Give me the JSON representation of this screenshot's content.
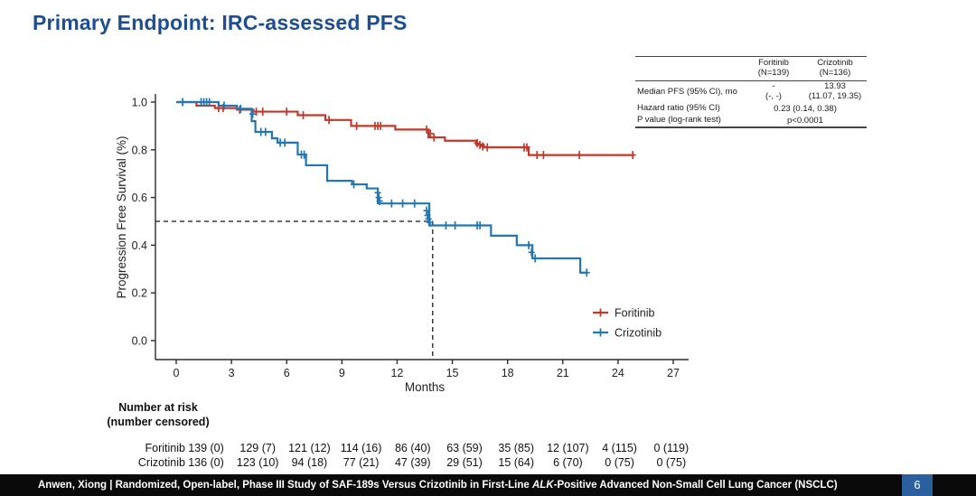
{
  "title": "Primary Endpoint: IRC-assessed PFS",
  "theme": {
    "title_color": "#1d4e93",
    "foritinib_color": "#c0392b",
    "crizotinib_color": "#2077b4",
    "dashed_line_color": "#3a3a3a",
    "axis_color": "#2b2b2b",
    "footer_bg": "#0a0a0a",
    "page_box_color": "#2c5f9e"
  },
  "stats_table": {
    "columns": [
      {
        "name": "Foritinib",
        "n": "(N=139)"
      },
      {
        "name": "Crizotinib",
        "n": "(N=136)"
      }
    ],
    "rows": {
      "median": {
        "label": "Median PFS (95% CI), mo",
        "foritinib_value": "-",
        "foritinib_ci": "(-, -)",
        "crizotinib_value": "13.93",
        "crizotinib_ci": "(11.07, 19.35)"
      },
      "hazard": {
        "label": "Hazard ratio (95% CI)",
        "value": "0.23 (0.14, 0.38)"
      },
      "pvalue": {
        "label": "P value (log-rank test)",
        "value": "p<0.0001"
      }
    }
  },
  "chart_data": {
    "type": "line",
    "subtype": "kaplan-meier-step",
    "title": "",
    "xlabel": "Months",
    "ylabel": "Progression Free Survival (%)",
    "x_ticks": [
      0,
      3,
      6,
      9,
      12,
      15,
      18,
      21,
      24,
      27
    ],
    "y_ticks": [
      0.0,
      0.2,
      0.4,
      0.6,
      0.8,
      1.0
    ],
    "y_tick_labels": [
      "0.0",
      "0.2",
      "0.4",
      "0.6",
      "0.8",
      "1.0"
    ],
    "xlim": [
      0,
      28
    ],
    "ylim": [
      0,
      1.02
    ],
    "grid": false,
    "legend_position": "inside-lower-right",
    "median_reference": {
      "x": 13.93,
      "y": 0.5
    },
    "series": [
      {
        "name": "Foritinib",
        "color": "#c0392b",
        "steps": [
          [
            0,
            1.0
          ],
          [
            1.1,
            0.985
          ],
          [
            2.1,
            0.975
          ],
          [
            3.3,
            0.968
          ],
          [
            4.2,
            0.96
          ],
          [
            6.6,
            0.945
          ],
          [
            8.1,
            0.925
          ],
          [
            9.5,
            0.9
          ],
          [
            11.9,
            0.885
          ],
          [
            13.7,
            0.852
          ],
          [
            14.6,
            0.838
          ],
          [
            16.3,
            0.822
          ],
          [
            16.7,
            0.81
          ],
          [
            19.15,
            0.778
          ],
          [
            24.8,
            0.778
          ]
        ],
        "censors": [
          [
            2.3,
            0.975
          ],
          [
            2.55,
            0.975
          ],
          [
            3.45,
            0.968
          ],
          [
            4.35,
            0.96
          ],
          [
            4.7,
            0.96
          ],
          [
            6.0,
            0.96
          ],
          [
            6.9,
            0.945
          ],
          [
            8.3,
            0.925
          ],
          [
            9.8,
            0.9
          ],
          [
            10.8,
            0.9
          ],
          [
            10.95,
            0.9
          ],
          [
            11.1,
            0.9
          ],
          [
            13.6,
            0.885
          ],
          [
            13.8,
            0.868
          ],
          [
            14.0,
            0.852
          ],
          [
            16.35,
            0.828
          ],
          [
            16.5,
            0.82
          ],
          [
            16.65,
            0.814
          ],
          [
            16.9,
            0.81
          ],
          [
            18.9,
            0.81
          ],
          [
            19.05,
            0.81
          ],
          [
            19.6,
            0.778
          ],
          [
            19.95,
            0.778
          ],
          [
            21.9,
            0.778
          ],
          [
            24.8,
            0.778
          ]
        ]
      },
      {
        "name": "Crizotinib",
        "color": "#2077b4",
        "steps": [
          [
            0,
            1.0
          ],
          [
            2.3,
            0.985
          ],
          [
            3.3,
            0.972
          ],
          [
            4.1,
            0.92
          ],
          [
            4.3,
            0.875
          ],
          [
            5.2,
            0.848
          ],
          [
            5.5,
            0.83
          ],
          [
            6.6,
            0.78
          ],
          [
            7.05,
            0.735
          ],
          [
            8.2,
            0.67
          ],
          [
            9.55,
            0.655
          ],
          [
            10.35,
            0.638
          ],
          [
            10.95,
            0.575
          ],
          [
            13.75,
            0.483
          ],
          [
            17.1,
            0.44
          ],
          [
            18.5,
            0.4
          ],
          [
            19.35,
            0.345
          ],
          [
            21.95,
            0.285
          ],
          [
            22.3,
            0.285
          ]
        ],
        "censors": [
          [
            0.35,
            1.0
          ],
          [
            1.35,
            1.0
          ],
          [
            1.5,
            1.0
          ],
          [
            1.65,
            1.0
          ],
          [
            1.8,
            1.0
          ],
          [
            2.6,
            0.985
          ],
          [
            3.5,
            0.972
          ],
          [
            4.15,
            0.95
          ],
          [
            4.6,
            0.875
          ],
          [
            4.85,
            0.875
          ],
          [
            5.65,
            0.83
          ],
          [
            5.9,
            0.83
          ],
          [
            6.8,
            0.78
          ],
          [
            6.95,
            0.78
          ],
          [
            9.65,
            0.655
          ],
          [
            10.95,
            0.62
          ],
          [
            11.0,
            0.6
          ],
          [
            11.05,
            0.585
          ],
          [
            11.7,
            0.575
          ],
          [
            12.3,
            0.575
          ],
          [
            12.95,
            0.575
          ],
          [
            13.6,
            0.545
          ],
          [
            13.65,
            0.525
          ],
          [
            13.7,
            0.51
          ],
          [
            13.78,
            0.495
          ],
          [
            14.65,
            0.483
          ],
          [
            15.15,
            0.483
          ],
          [
            16.35,
            0.483
          ],
          [
            16.5,
            0.483
          ],
          [
            19.15,
            0.4
          ],
          [
            19.3,
            0.37
          ],
          [
            19.5,
            0.345
          ],
          [
            22.3,
            0.285
          ]
        ]
      }
    ]
  },
  "risk_table": {
    "header_line1": "Number at risk",
    "header_line2": "(number censored)",
    "rows": [
      {
        "label": "Foritinib",
        "values": [
          "139 (0)",
          "129 (7)",
          "121 (12)",
          "114 (16)",
          "86 (40)",
          "63 (59)",
          "35 (85)",
          "12 (107)",
          "4 (115)",
          "0 (119)"
        ]
      },
      {
        "label": "Crizotinib",
        "values": [
          "136 (0)",
          "123 (10)",
          "94 (18)",
          "77 (21)",
          "47 (39)",
          "29 (51)",
          "15 (64)",
          "6 (70)",
          "0 (75)",
          "0 (75)"
        ]
      }
    ]
  },
  "footer": {
    "text_before_italic": "Anwen, Xiong | Randomized, Open-label, Phase III Study of SAF-189s Versus Crizotinib in First-Line ",
    "italic_text": "ALK",
    "text_after_italic": "-Positive Advanced Non-Small Cell Lung Cancer (NSCLC)",
    "page_number": "6"
  }
}
